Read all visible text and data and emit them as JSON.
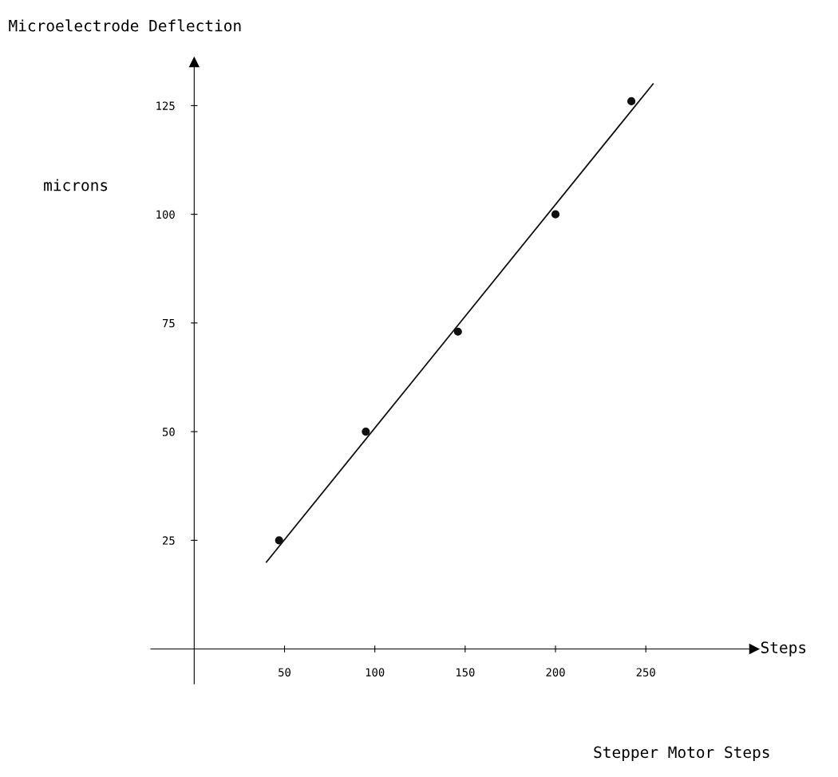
{
  "chart_data": {
    "type": "scatter",
    "xlabel": "Stepper Motor Steps",
    "ylabel": "Microelectrode Deflection",
    "annotations": [
      "microns",
      "Steps"
    ],
    "xlim": [
      -24,
      310
    ],
    "ylim": [
      -8,
      135
    ],
    "xticks": [
      50,
      100,
      150,
      200,
      250
    ],
    "yticks": [
      25,
      50,
      75,
      100,
      125
    ],
    "grid": false,
    "legend": false,
    "series": [
      {
        "marker": "circle",
        "color": "#111111",
        "x": [
          47,
          95,
          146,
          200,
          242
        ],
        "values": [
          25,
          50,
          73,
          100,
          126
        ]
      },
      {
        "type": "line",
        "color": "#111111",
        "x": [
          40,
          254
        ],
        "values": [
          20,
          130
        ],
        "line_style": "solid",
        "marker": "none"
      }
    ]
  }
}
